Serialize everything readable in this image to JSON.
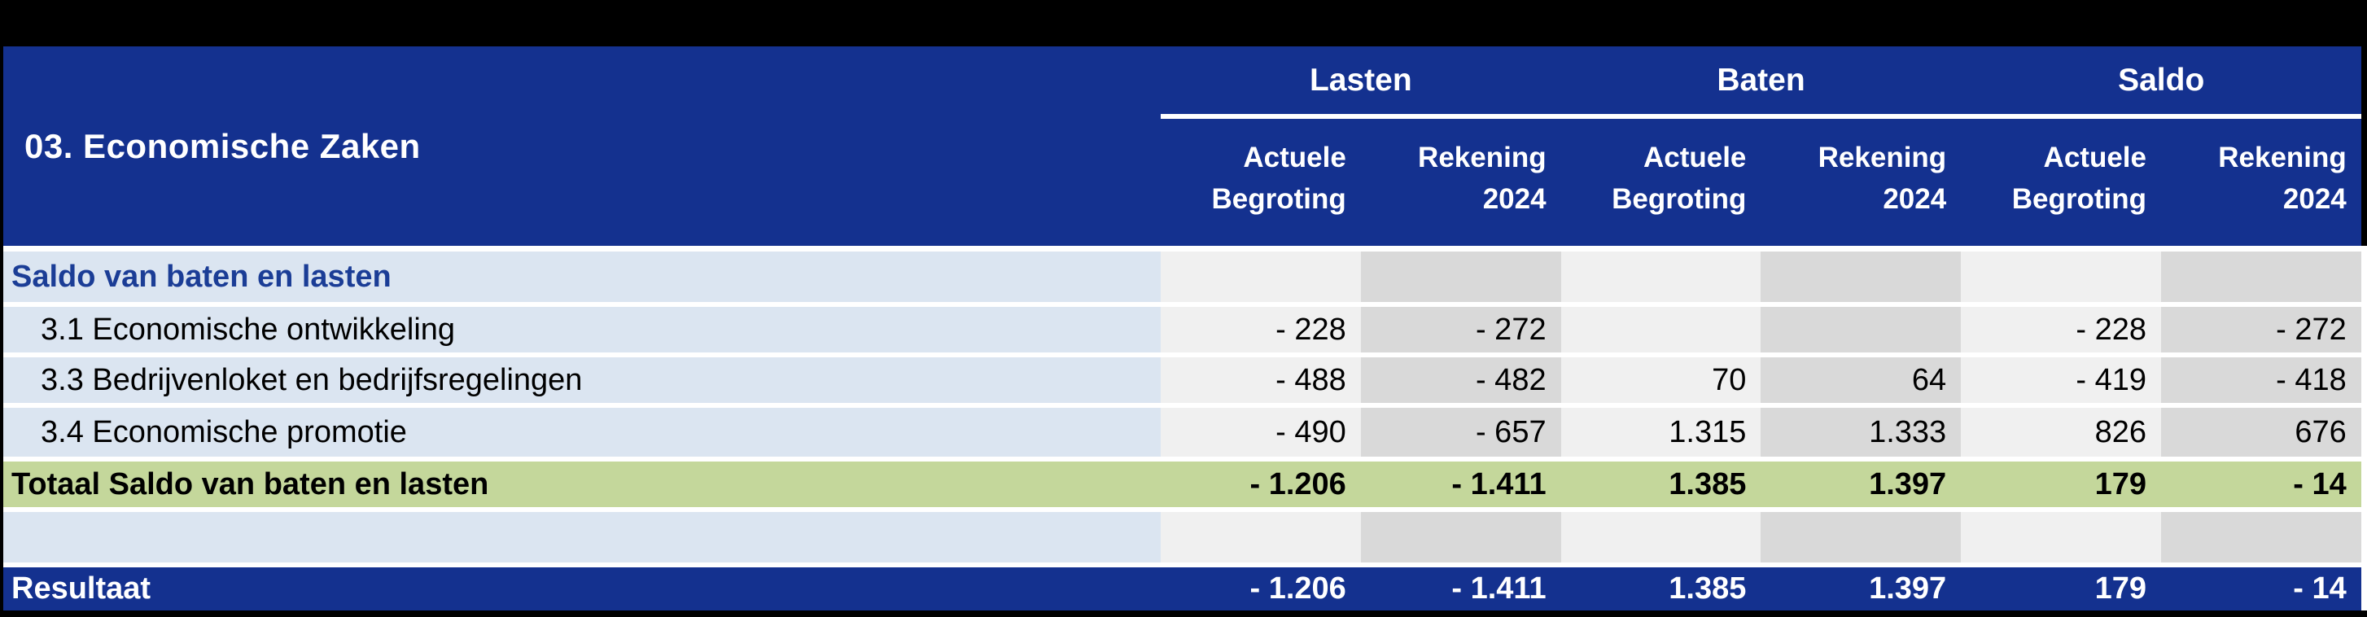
{
  "table": {
    "title": "03. Economische Zaken",
    "column_groups": [
      {
        "label": "Lasten"
      },
      {
        "label": "Baten"
      },
      {
        "label": "Saldo"
      }
    ],
    "sub_headers": [
      {
        "line1": "Actuele",
        "line2": "Begroting"
      },
      {
        "line1": "Rekening",
        "line2": "2024"
      },
      {
        "line1": "Actuele",
        "line2": "Begroting"
      },
      {
        "line1": "Rekening",
        "line2": "2024"
      },
      {
        "line1": "Actuele",
        "line2": "Begroting"
      },
      {
        "line1": "Rekening",
        "line2": "2024"
      }
    ],
    "rows": [
      {
        "type": "section",
        "label": "Saldo van baten en lasten",
        "values": [
          "",
          "",
          "",
          "",
          "",
          ""
        ]
      },
      {
        "type": "data",
        "label": "3.1 Economische ontwikkeling",
        "values": [
          "- 228",
          "- 272",
          "",
          "",
          "- 228",
          "- 272"
        ]
      },
      {
        "type": "data",
        "label": "3.3 Bedrijvenloket en bedrijfsregelingen",
        "values": [
          "- 488",
          "- 482",
          "70",
          "64",
          "- 419",
          "- 418"
        ]
      },
      {
        "type": "data",
        "label": "3.4 Economische promotie",
        "values": [
          "- 490",
          "- 657",
          "1.315",
          "1.333",
          "826",
          "676"
        ]
      },
      {
        "type": "total",
        "label": "Totaal Saldo van baten en lasten",
        "values": [
          "- 1.206",
          "- 1.411",
          "1.385",
          "1.397",
          "179",
          "- 14"
        ]
      },
      {
        "type": "spacer",
        "label": "",
        "values": [
          "",
          "",
          "",
          "",
          "",
          ""
        ]
      },
      {
        "type": "result",
        "label": "Resultaat",
        "values": [
          "- 1.206",
          "- 1.411",
          "1.385",
          "1.397",
          "179",
          "- 14"
        ]
      }
    ],
    "colors": {
      "header_blue": "#14318f",
      "section_text_blue": "#1b3d96",
      "total_green": "#c4d79b",
      "label_light_blue": "#dbe5f1",
      "column_light_gray": "#f0f0f0",
      "column_dark_gray": "#d9d9d9",
      "frame_black": "#000000",
      "page_white": "#ffffff"
    }
  }
}
